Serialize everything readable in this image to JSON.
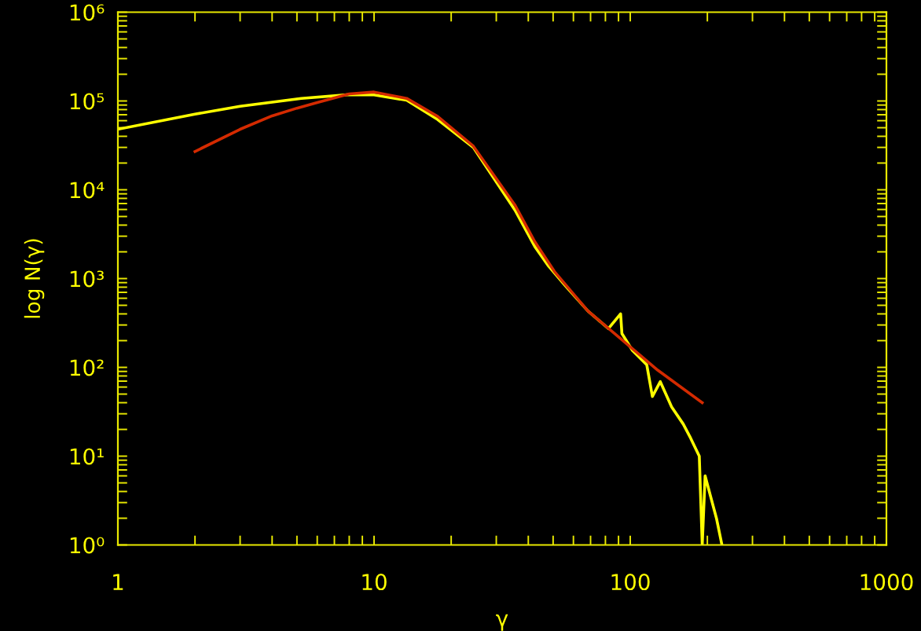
{
  "chart_data": {
    "type": "line",
    "xlabel": "γ",
    "ylabel": "log N(γ)",
    "log": "xy",
    "xlim": [
      1,
      1000
    ],
    "ylim": [
      1,
      1000000
    ],
    "xticks": [
      1,
      {
        "value": 2,
        "label": null
      },
      {
        "value": 3,
        "label": null
      },
      {
        "value": 4,
        "label": null
      },
      {
        "value": 5,
        "label": null
      },
      {
        "value": 6,
        "label": null
      },
      {
        "value": 7,
        "label": null
      },
      {
        "value": 8,
        "label": null
      },
      {
        "value": 9,
        "label": null
      },
      10,
      {
        "value": 20,
        "label": null
      },
      {
        "value": 30,
        "label": null
      },
      {
        "value": 40,
        "label": null
      },
      {
        "value": 50,
        "label": null
      },
      {
        "value": 60,
        "label": null
      },
      {
        "value": 70,
        "label": null
      },
      {
        "value": 80,
        "label": null
      },
      {
        "value": 90,
        "label": null
      },
      100,
      {
        "value": 200,
        "label": null
      },
      {
        "value": 300,
        "label": null
      },
      {
        "value": 400,
        "label": null
      },
      {
        "value": 500,
        "label": null
      },
      {
        "value": 600,
        "label": null
      },
      {
        "value": 700,
        "label": null
      },
      {
        "value": 800,
        "label": null
      },
      {
        "value": 900,
        "label": null
      },
      1000
    ],
    "yticks": [
      {
        "value": 1,
        "label": "10⁰"
      },
      {
        "value": 2,
        "label": null
      },
      {
        "value": 3,
        "label": null
      },
      {
        "value": 4,
        "label": null
      },
      {
        "value": 5,
        "label": null
      },
      {
        "value": 6,
        "label": null
      },
      {
        "value": 7,
        "label": null
      },
      {
        "value": 8,
        "label": null
      },
      {
        "value": 9,
        "label": null
      },
      {
        "value": 10,
        "label": "10¹"
      },
      {
        "value": 20,
        "label": null
      },
      {
        "value": 30,
        "label": null
      },
      {
        "value": 40,
        "label": null
      },
      {
        "value": 50,
        "label": null
      },
      {
        "value": 60,
        "label": null
      },
      {
        "value": 70,
        "label": null
      },
      {
        "value": 80,
        "label": null
      },
      {
        "value": 90,
        "label": null
      },
      {
        "value": 100,
        "label": "10²"
      },
      {
        "value": 200,
        "label": null
      },
      {
        "value": 300,
        "label": null
      },
      {
        "value": 400,
        "label": null
      },
      {
        "value": 500,
        "label": null
      },
      {
        "value": 600,
        "label": null
      },
      {
        "value": 700,
        "label": null
      },
      {
        "value": 800,
        "label": null
      },
      {
        "value": 900,
        "label": null
      },
      {
        "value": 1000,
        "label": "10³"
      },
      {
        "value": 2000,
        "label": null
      },
      {
        "value": 3000,
        "label": null
      },
      {
        "value": 4000,
        "label": null
      },
      {
        "value": 5000,
        "label": null
      },
      {
        "value": 6000,
        "label": null
      },
      {
        "value": 7000,
        "label": null
      },
      {
        "value": 8000,
        "label": null
      },
      {
        "value": 9000,
        "label": null
      },
      {
        "value": 10000,
        "label": "10⁴"
      },
      {
        "value": 20000,
        "label": null
      },
      {
        "value": 30000,
        "label": null
      },
      {
        "value": 40000,
        "label": null
      },
      {
        "value": 50000,
        "label": null
      },
      {
        "value": 60000,
        "label": null
      },
      {
        "value": 70000,
        "label": null
      },
      {
        "value": 80000,
        "label": null
      },
      {
        "value": 90000,
        "label": null
      },
      {
        "value": 100000,
        "label": "10⁵"
      },
      {
        "value": 200000,
        "label": null
      },
      {
        "value": 300000,
        "label": null
      },
      {
        "value": 400000,
        "label": null
      },
      {
        "value": 500000,
        "label": null
      },
      {
        "value": 600000,
        "label": null
      },
      {
        "value": 700000,
        "label": null
      },
      {
        "value": 800000,
        "label": null
      },
      {
        "value": 900000,
        "label": null
      },
      {
        "value": 1000000,
        "label": "10⁶"
      }
    ],
    "series": [
      {
        "color": "#ffff00",
        "x": [
          1,
          2,
          3,
          5.2,
          8,
          10,
          13.4,
          17.7,
          24.4,
          35.5,
          42.4,
          48,
          55.8,
          68.4,
          82.2,
          91.7,
          92.8,
          102,
          116,
          122,
          131,
          145,
          161,
          172,
          186,
          191,
          196,
          206,
          217,
          228
        ],
        "values": [
          48000,
          71000,
          87000,
          107000,
          118000,
          117000,
          102000,
          62000,
          30000,
          5900,
          2300,
          1380,
          830,
          430,
          273,
          400,
          240,
          155,
          107,
          47,
          69,
          36,
          23,
          16,
          10,
          1,
          6,
          3.5,
          2,
          1
        ]
      },
      {
        "color": "#d42a00",
        "x": [
          2,
          3,
          4,
          5,
          6,
          8,
          10,
          13.4,
          17.7,
          24.4,
          35.5,
          42.4,
          50.6,
          68.4,
          92.8,
          128,
          191
        ],
        "values": [
          27000,
          48000,
          68000,
          83000,
          96000,
          120000,
          126000,
          107000,
          67000,
          31000,
          6700,
          2600,
          1200,
          430,
          205,
          93,
          40
        ]
      }
    ]
  }
}
